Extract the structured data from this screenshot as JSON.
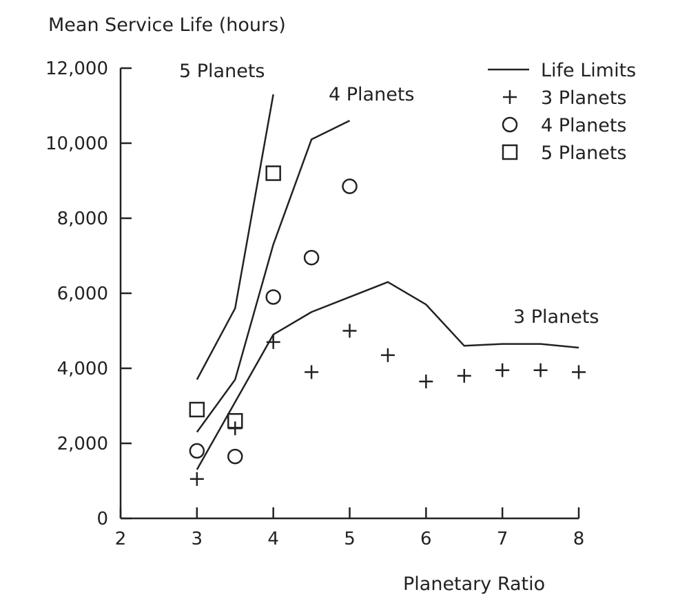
{
  "chart_data": {
    "type": "line",
    "ylabel": "Mean Service Life (hours)",
    "xlabel": "Planetary Ratio",
    "xlim": [
      2,
      8
    ],
    "ylim": [
      0,
      12000
    ],
    "x_ticks": [
      {
        "value": 2,
        "label": "2"
      },
      {
        "value": 3,
        "label": "3"
      },
      {
        "value": 4,
        "label": "4"
      },
      {
        "value": 5,
        "label": "5"
      },
      {
        "value": 6,
        "label": "6"
      },
      {
        "value": 7,
        "label": "7"
      },
      {
        "value": 8,
        "label": "8"
      }
    ],
    "y_ticks": [
      {
        "value": 0,
        "label": "0"
      },
      {
        "value": 2000,
        "label": "2,000"
      },
      {
        "value": 4000,
        "label": "4,000"
      },
      {
        "value": 6000,
        "label": "6,000"
      },
      {
        "value": 8000,
        "label": "8,000"
      },
      {
        "value": 10000,
        "label": "10,000"
      },
      {
        "value": 12000,
        "label": "12,000"
      }
    ],
    "grid": false,
    "legend_position": "top-right",
    "legend": [
      {
        "symbol": "line",
        "label": "Life Limits"
      },
      {
        "symbol": "plus",
        "label": "3 Planets"
      },
      {
        "symbol": "circle",
        "label": "4 Planets"
      },
      {
        "symbol": "square",
        "label": "5 Planets"
      }
    ],
    "life_limits": [
      {
        "label": "5 Planets",
        "x": [
          3,
          3.5,
          4
        ],
        "y": [
          3700,
          5600,
          11300
        ]
      },
      {
        "label": "4 Planets",
        "x": [
          3,
          3.5,
          4,
          4.5,
          5
        ],
        "y": [
          2300,
          3700,
          7300,
          10100,
          10600
        ]
      },
      {
        "label": "3 Planets",
        "x": [
          3,
          3.5,
          4,
          4.5,
          5,
          5.5,
          6,
          6.5,
          7,
          7.5,
          8
        ],
        "y": [
          1300,
          3100,
          4900,
          5500,
          5900,
          6300,
          5700,
          4600,
          4650,
          4650,
          4550
        ]
      }
    ],
    "series": [
      {
        "name": "3 Planets",
        "marker": "plus",
        "x": [
          3,
          3.5,
          4,
          4.5,
          5,
          5.5,
          6,
          6.5,
          7,
          7.5,
          8
        ],
        "y": [
          1050,
          2400,
          4700,
          3900,
          5000,
          4350,
          3650,
          3800,
          3950,
          3950,
          3900
        ]
      },
      {
        "name": "4 Planets",
        "marker": "circle",
        "x": [
          3,
          3.5,
          4,
          4.5,
          5
        ],
        "y": [
          1800,
          1650,
          5900,
          6950,
          8850
        ]
      },
      {
        "name": "5 Planets",
        "marker": "square",
        "x": [
          3,
          3.5,
          4
        ],
        "y": [
          2900,
          2600,
          9200
        ]
      }
    ]
  }
}
